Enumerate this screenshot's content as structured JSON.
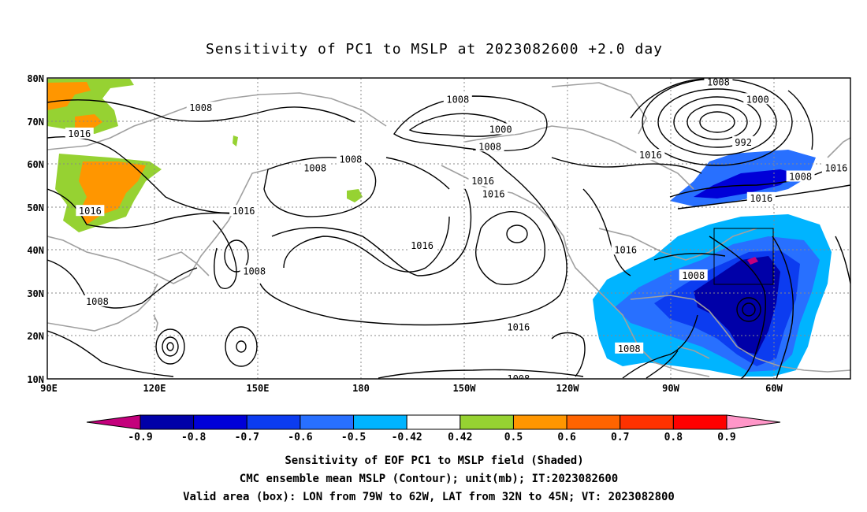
{
  "title": "Sensitivity of PC1 to MSLP at 2023082600 +2.0 day",
  "map": {
    "lat_labels": [
      "80N",
      "70N",
      "60N",
      "50N",
      "40N",
      "30N",
      "20N",
      "10N"
    ],
    "lon_labels": [
      "90E",
      "120E",
      "150E",
      "180",
      "150W",
      "120W",
      "90W",
      "60W"
    ],
    "lon_range_deg_east": [
      90,
      315
    ],
    "lat_range": [
      10,
      80
    ]
  },
  "contour_labels": [
    {
      "text": "1008",
      "lon": 133,
      "lat": 73
    },
    {
      "text": "1016",
      "lon": 99,
      "lat": 67
    },
    {
      "text": "1016",
      "lon": 102,
      "lat": 49
    },
    {
      "text": "1008",
      "lon": 104,
      "lat": 28
    },
    {
      "text": "1008",
      "lon": 148,
      "lat": 35
    },
    {
      "text": "1016",
      "lon": 145,
      "lat": 49
    },
    {
      "text": "1008",
      "lon": 165,
      "lat": 59
    },
    {
      "text": "1008",
      "lon": 175,
      "lat": 61
    },
    {
      "text": "1016",
      "lon": 195,
      "lat": 41
    },
    {
      "text": "1008",
      "lon": 205,
      "lat": 75
    },
    {
      "text": "1000",
      "lon": 217,
      "lat": 68
    },
    {
      "text": "1008",
      "lon": 214,
      "lat": 64
    },
    {
      "text": "1016",
      "lon": 212,
      "lat": 56
    },
    {
      "text": "1016",
      "lon": 215,
      "lat": 53
    },
    {
      "text": "1016",
      "lon": 222,
      "lat": 22
    },
    {
      "text": "1008",
      "lon": 222,
      "lat": 10
    },
    {
      "text": "1016",
      "lon": 252,
      "lat": 40
    },
    {
      "text": "1016",
      "lon": 259,
      "lat": 62
    },
    {
      "text": "1008",
      "lon": 253,
      "lat": 17
    },
    {
      "text": "1008",
      "lon": 271,
      "lat": 34
    },
    {
      "text": "1008",
      "lon": 278,
      "lat": 79
    },
    {
      "text": "1000",
      "lon": 289,
      "lat": 75
    },
    {
      "text": "992",
      "lon": 285,
      "lat": 65
    },
    {
      "text": "1008",
      "lon": 301,
      "lat": 57
    },
    {
      "text": "1016",
      "lon": 290,
      "lat": 52
    },
    {
      "text": "1016",
      "lon": 311,
      "lat": 59
    }
  ],
  "valid_box": {
    "lon": [
      281,
      298
    ],
    "lat": [
      32,
      45
    ]
  },
  "colorbar": {
    "tick_labels": [
      "-0.9",
      "-0.8",
      "-0.7",
      "-0.6",
      "-0.5",
      "-0.42",
      "0.42",
      "0.5",
      "0.6",
      "0.7",
      "0.8",
      "0.9"
    ],
    "colors": [
      "#c4007c",
      "#0000a8",
      "#0000d8",
      "#0c3cf0",
      "#2870ff",
      "#00b4ff",
      "#ffffff",
      "#96d232",
      "#ff9600",
      "#ff6400",
      "#ff3200",
      "#ff0000",
      "#ff96c8"
    ]
  },
  "footer": {
    "line1": "Sensitivity of EOF PC1 to MSLP field (Shaded)",
    "line2": "CMC ensemble mean MSLP (Contour); unit(mb); IT:2023082600",
    "line3": "Valid area (box): LON from 79W to 62W, LAT from 32N to 45N; VT: 2023082800"
  }
}
